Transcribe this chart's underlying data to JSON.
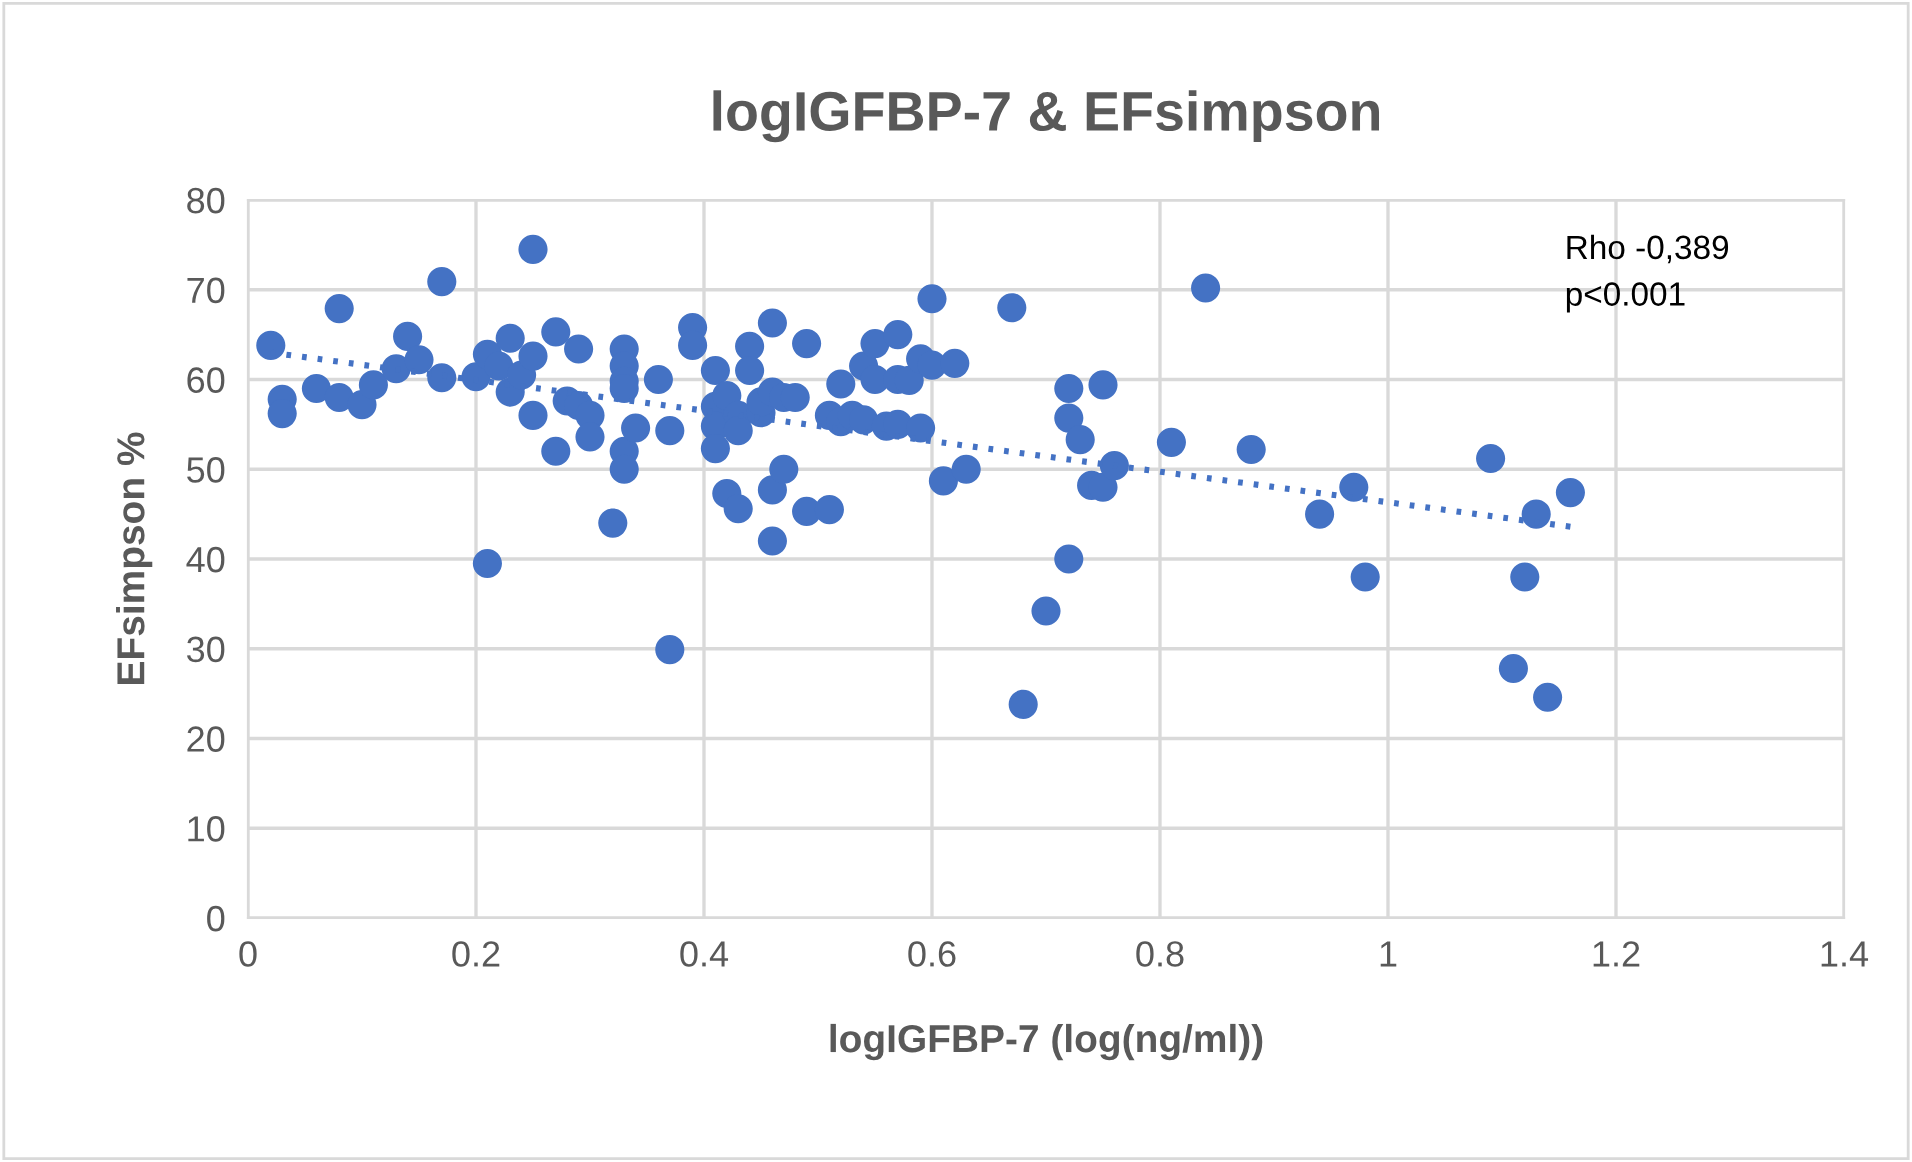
{
  "chart_data": {
    "type": "scatter",
    "title": "logIGFBP-7 & EFsimpson",
    "xlabel": "logIGFBP-7 (log(ng/ml))",
    "ylabel": "EFsimpson %",
    "annotations": [
      "Rho -0,389",
      "p<0.001"
    ],
    "series": [
      {
        "color": "#4472c4",
        "marker": "circle",
        "x": [
          0.02,
          0.03,
          0.03,
          0.06,
          0.08,
          0.08,
          0.1,
          0.11,
          0.13,
          0.14,
          0.15,
          0.17,
          0.17,
          0.2,
          0.21,
          0.21,
          0.22,
          0.23,
          0.23,
          0.24,
          0.25,
          0.25,
          0.25,
          0.27,
          0.27,
          0.28,
          0.29,
          0.29,
          0.3,
          0.3,
          0.32,
          0.33,
          0.33,
          0.33,
          0.33,
          0.33,
          0.33,
          0.34,
          0.36,
          0.37,
          0.37,
          0.39,
          0.39,
          0.41,
          0.41,
          0.41,
          0.41,
          0.42,
          0.42,
          0.43,
          0.43,
          0.43,
          0.44,
          0.44,
          0.45,
          0.45,
          0.46,
          0.46,
          0.46,
          0.46,
          0.47,
          0.47,
          0.48,
          0.49,
          0.49,
          0.51,
          0.51,
          0.52,
          0.52,
          0.53,
          0.54,
          0.54,
          0.55,
          0.55,
          0.56,
          0.57,
          0.57,
          0.57,
          0.58,
          0.59,
          0.59,
          0.6,
          0.6,
          0.61,
          0.62,
          0.63,
          0.67,
          0.68,
          0.7,
          0.72,
          0.72,
          0.72,
          0.73,
          0.74,
          0.75,
          0.75,
          0.76,
          0.81,
          0.84,
          0.88,
          0.94,
          0.97,
          0.98,
          1.09,
          1.11,
          1.12,
          1.13,
          1.14,
          1.16
        ],
        "values": [
          63.8,
          57.8,
          56.2,
          59,
          67.9,
          58,
          57.2,
          59.4,
          61.2,
          64.8,
          62.2,
          70.9,
          60.2,
          60.3,
          62.8,
          39.5,
          61.5,
          64.6,
          58.6,
          60.5,
          74.5,
          62.6,
          56.0,
          65.3,
          52.0,
          57.6,
          63.4,
          57.1,
          56.0,
          53.6,
          44.0,
          63.4,
          61.5,
          59.8,
          59.0,
          52.0,
          50.0,
          54.6,
          60.0,
          54.3,
          29.9,
          65.8,
          63.8,
          61.0,
          57.0,
          54.8,
          52.3,
          58.2,
          47.3,
          56.0,
          54.3,
          45.6,
          63.7,
          61.0,
          56.3,
          57.5,
          66.3,
          58.6,
          47.7,
          42.0,
          58.0,
          50.0,
          58.0,
          64.0,
          45.3,
          45.5,
          56.0,
          59.5,
          55.3,
          56.0,
          61.5,
          55.5,
          64.0,
          60.0,
          54.8,
          65.0,
          60.0,
          55.0,
          59.9,
          62.3,
          54.6,
          69.0,
          61.6,
          48.7,
          61.8,
          50.0,
          68.0,
          23.8,
          34.2,
          59.0,
          55.7,
          40.0,
          53.3,
          48.2,
          59.4,
          48.0,
          50.4,
          53.0,
          70.2,
          52.2,
          45.0,
          48.0,
          38.0,
          51.2,
          27.8,
          38.0,
          45.0,
          24.6,
          47.4
        ]
      },
      {
        "type": "line",
        "color": "#4472c4",
        "line_style": "dotted",
        "marker": "none",
        "x": [
          0.02,
          1.16
        ],
        "values": [
          63.0,
          43.6
        ]
      }
    ],
    "xlim": [
      0,
      1.4
    ],
    "xticks": [
      0,
      {
        "value": 0.2,
        "label": "0.2"
      },
      {
        "value": 0.4,
        "label": "0.4"
      },
      {
        "value": 0.6,
        "label": "0.6"
      },
      {
        "value": 0.8,
        "label": "0.8"
      },
      1,
      {
        "value": 1.2,
        "label": "1.2"
      },
      {
        "value": 1.4,
        "label": "1.4"
      }
    ],
    "ylim": [
      0,
      80
    ],
    "yticks": [
      0,
      10,
      20,
      30,
      40,
      50,
      60,
      70,
      80
    ],
    "grid": true,
    "legend": false
  }
}
